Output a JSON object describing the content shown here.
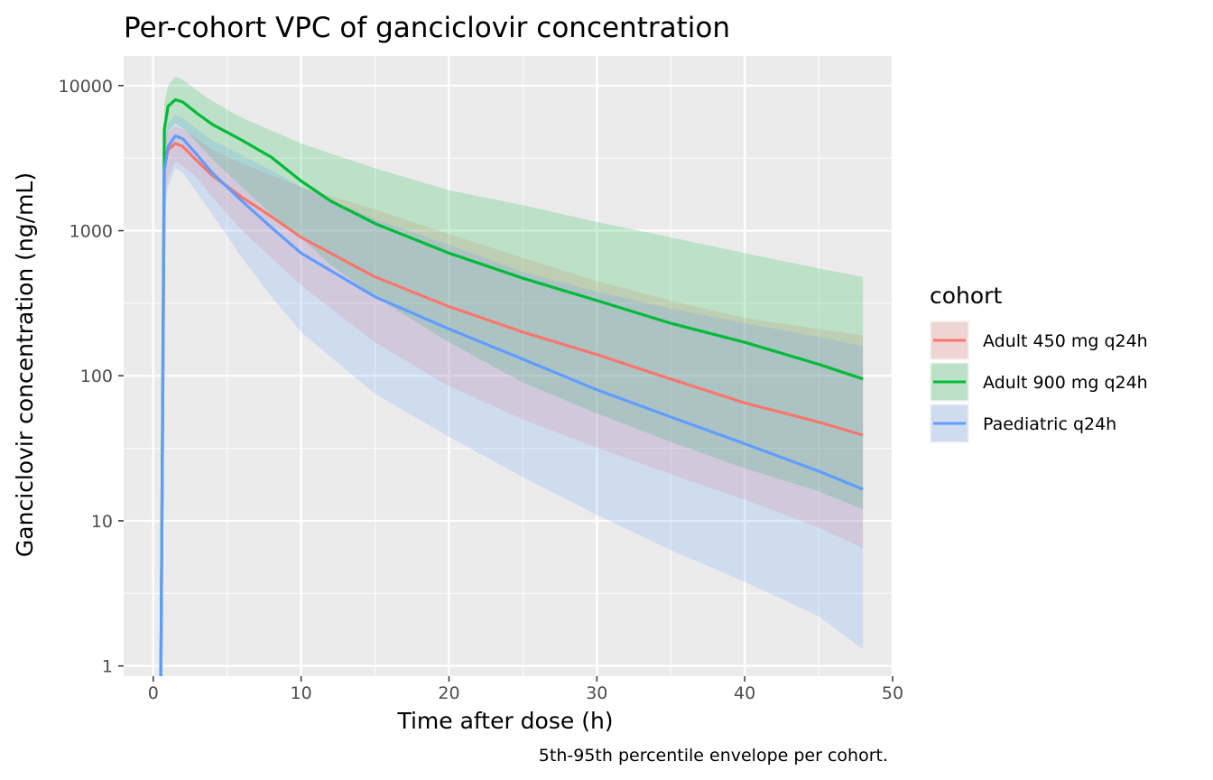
{
  "chart_data": {
    "type": "line",
    "title": "Per-cohort VPC of ganciclovir concentration",
    "xlabel": "Time after dose (h)",
    "ylabel": "Ganciclovir concentration (ng/mL)",
    "caption": "5th-95th percentile envelope per cohort.",
    "xlim": [
      -2,
      50
    ],
    "ylim": [
      0.85,
      16000
    ],
    "y_scale": "log10",
    "x_ticks": [
      0,
      10,
      20,
      30,
      40,
      50
    ],
    "x_tick_labels": [
      "0",
      "10",
      "20",
      "30",
      "40",
      "50"
    ],
    "y_ticks": [
      1,
      10,
      100,
      1000,
      10000
    ],
    "y_tick_labels": [
      "1",
      "10",
      "100",
      "1000",
      "10000"
    ],
    "grid": true,
    "legend_title": "cohort",
    "legend_position": "right",
    "series": [
      {
        "name": "Adult 450 mg q24h",
        "color": "#F8766D",
        "x": [
          0.5,
          0.75,
          1,
          1.5,
          2,
          3,
          4,
          6,
          8,
          10,
          15,
          20,
          25,
          30,
          35,
          40,
          45,
          48
        ],
        "median": [
          0.5,
          2800,
          3600,
          4000,
          3800,
          3000,
          2400,
          1700,
          1250,
          900,
          480,
          300,
          200,
          140,
          95,
          65,
          48,
          39
        ],
        "p05": [
          0.3,
          1500,
          2300,
          3000,
          2800,
          2300,
          1700,
          1000,
          650,
          420,
          170,
          85,
          50,
          32,
          21,
          14,
          9,
          6.5
        ],
        "p95": [
          0.8,
          3800,
          4800,
          5200,
          5000,
          4300,
          3600,
          2900,
          2400,
          2000,
          1400,
          950,
          650,
          450,
          330,
          250,
          210,
          190
        ]
      },
      {
        "name": "Adult 900 mg q24h",
        "color": "#00BA38",
        "x": [
          0.5,
          0.75,
          1,
          1.5,
          2,
          3,
          4,
          6,
          8,
          10,
          12,
          15,
          20,
          25,
          30,
          35,
          40,
          45,
          48
        ],
        "median": [
          0.5,
          5000,
          7200,
          8000,
          7700,
          6400,
          5400,
          4200,
          3200,
          2200,
          1600,
          1120,
          700,
          470,
          330,
          230,
          170,
          120,
          95
        ],
        "p05": [
          0.3,
          3200,
          4800,
          5500,
          5100,
          4000,
          3100,
          2000,
          1300,
          900,
          580,
          350,
          170,
          90,
          55,
          35,
          23,
          16,
          12
        ],
        "p95": [
          0.8,
          7500,
          10000,
          11500,
          11000,
          9200,
          7800,
          6000,
          4900,
          4000,
          3400,
          2700,
          1900,
          1500,
          1150,
          900,
          700,
          550,
          480
        ]
      },
      {
        "name": "Paediatric q24h",
        "color": "#619CFF",
        "x": [
          0.5,
          0.75,
          1,
          1.5,
          2,
          3,
          4,
          6,
          8,
          10,
          15,
          20,
          25,
          30,
          35,
          40,
          45,
          48
        ],
        "median": [
          0.5,
          2600,
          3800,
          4500,
          4300,
          3300,
          2500,
          1600,
          1050,
          700,
          350,
          210,
          130,
          80,
          52,
          34,
          22,
          16.5
        ],
        "p05": [
          0.3,
          1200,
          2000,
          2700,
          2500,
          1800,
          1300,
          650,
          350,
          200,
          75,
          38,
          20,
          11,
          6.3,
          3.8,
          2.2,
          1.3
        ],
        "p95": [
          0.8,
          4200,
          5500,
          6200,
          6000,
          5000,
          4200,
          3300,
          2600,
          2000,
          1200,
          800,
          520,
          380,
          290,
          230,
          185,
          160
        ]
      }
    ]
  }
}
